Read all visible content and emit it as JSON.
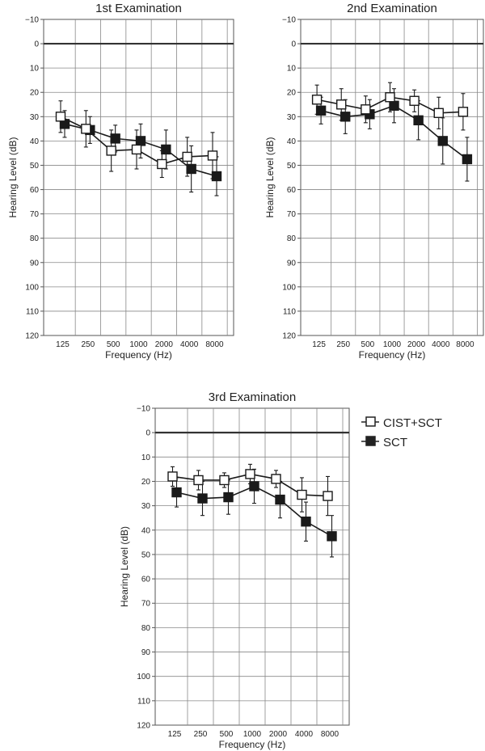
{
  "chart_data": [
    {
      "type": "line",
      "title": "1st Examination",
      "xlabel": "Frequency (Hz)",
      "ylabel": "Hearing Level (dB)",
      "categories": [
        "125",
        "250",
        "500",
        "1000",
        "2000",
        "4000",
        "8000"
      ],
      "yticks": [
        "−10",
        "0",
        "10",
        "20",
        "30",
        "40",
        "50",
        "60",
        "70",
        "80",
        "90",
        "100",
        "110",
        "120"
      ],
      "ylim": [
        -10,
        120
      ],
      "y_inverted": true,
      "reference_line_y": 0,
      "series": [
        {
          "name": "CIST+SCT",
          "marker": "open-square",
          "values": [
            30,
            35,
            44,
            43.5,
            49.5,
            46.5,
            46
          ],
          "error": [
            6.5,
            7.5,
            8.5,
            8,
            5.5,
            8,
            9.5
          ]
        },
        {
          "name": "SCT",
          "marker": "filled-square",
          "values": [
            33,
            35.5,
            39,
            40,
            43.5,
            51.5,
            54.5
          ],
          "error": [
            5.5,
            5.5,
            5.5,
            7,
            8,
            9.5,
            8
          ]
        }
      ]
    },
    {
      "type": "line",
      "title": "2nd Examination",
      "xlabel": "Frequency (Hz)",
      "ylabel": "Hearing Level (dB)",
      "categories": [
        "125",
        "250",
        "500",
        "1000",
        "2000",
        "4000",
        "8000"
      ],
      "yticks": [
        "−10",
        "0",
        "10",
        "20",
        "30",
        "40",
        "50",
        "60",
        "70",
        "80",
        "90",
        "100",
        "110",
        "120"
      ],
      "ylim": [
        -10,
        120
      ],
      "y_inverted": true,
      "reference_line_y": 0,
      "series": [
        {
          "name": "CIST+SCT",
          "marker": "open-square",
          "values": [
            23,
            25,
            27,
            22,
            23.5,
            28.5,
            28
          ],
          "error": [
            6,
            6.5,
            5.5,
            6,
            4.5,
            6.5,
            7.5
          ]
        },
        {
          "name": "SCT",
          "marker": "filled-square",
          "values": [
            27.5,
            30,
            29,
            25.5,
            31.5,
            40,
            47.5
          ],
          "error": [
            5.5,
            7,
            6,
            7,
            8,
            9.5,
            9
          ]
        }
      ]
    },
    {
      "type": "line",
      "title": "3rd Examination",
      "xlabel": "Frequency (Hz)",
      "ylabel": "Hearing Level (dB)",
      "categories": [
        "125",
        "250",
        "500",
        "1000",
        "2000",
        "4000",
        "8000"
      ],
      "yticks": [
        "−10",
        "0",
        "10",
        "20",
        "30",
        "40",
        "50",
        "60",
        "70",
        "80",
        "90",
        "100",
        "110",
        "120"
      ],
      "ylim": [
        -10,
        120
      ],
      "y_inverted": true,
      "reference_line_y": 0,
      "series": [
        {
          "name": "CIST+SCT",
          "marker": "open-square",
          "values": [
            18,
            19.5,
            19.5,
            17,
            19,
            25.5,
            26
          ],
          "error": [
            4,
            4,
            3,
            4,
            3.5,
            7,
            8
          ]
        },
        {
          "name": "SCT",
          "marker": "filled-square",
          "values": [
            24.5,
            27,
            26.5,
            22,
            27.5,
            36.5,
            42.5
          ],
          "error": [
            6,
            7,
            7,
            7,
            7.5,
            8,
            8.5
          ]
        }
      ]
    }
  ],
  "legend": {
    "items": [
      {
        "label": "CIST+SCT",
        "marker": "open-square"
      },
      {
        "label": "SCT",
        "marker": "filled-square"
      }
    ]
  }
}
